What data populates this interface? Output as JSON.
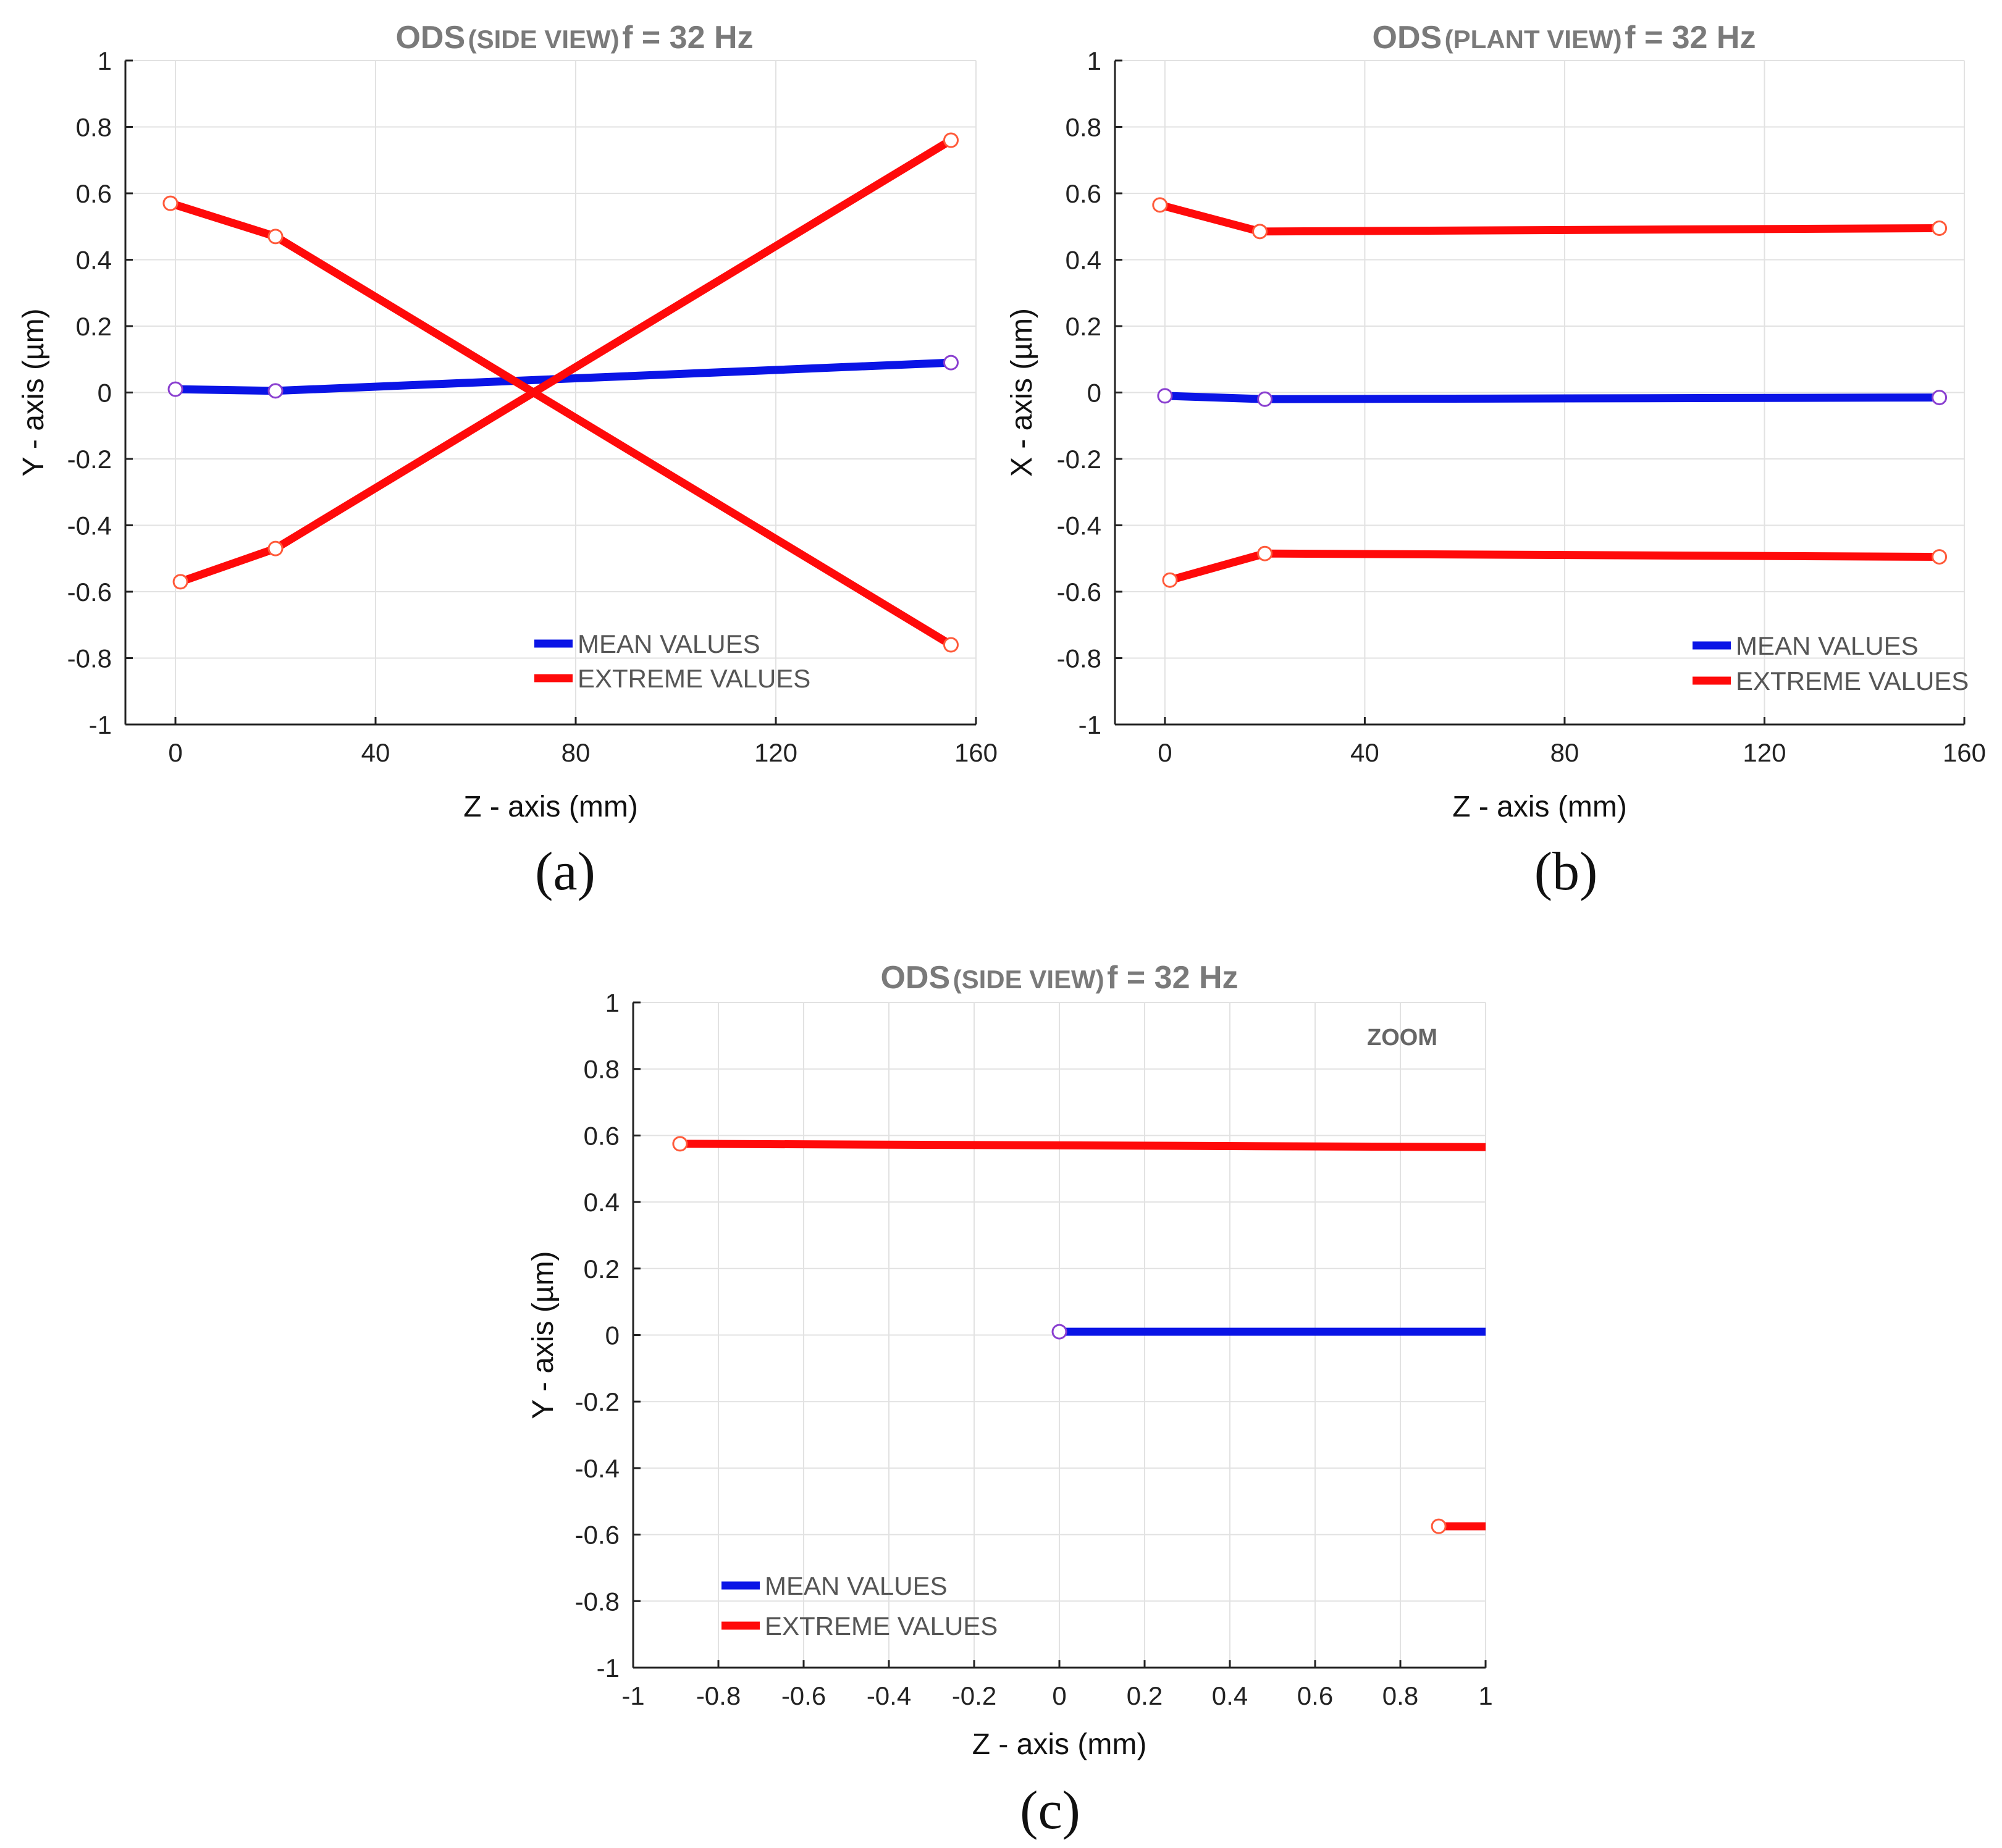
{
  "figure": {
    "captions": [
      "(a)",
      "(b)",
      "(c)"
    ]
  },
  "colors": {
    "mean": "#0a14e6",
    "extreme": "#ff0a0a",
    "mean_marker": "#8a3fd0",
    "extreme_marker": "#ff5a3a",
    "grid": "#e2e2e2",
    "axis": "#222222"
  },
  "chart_data": [
    {
      "type": "line",
      "title_prefix": "ODS",
      "title_view": "(SIDE VIEW)",
      "title_suffix": "f = 32 Hz",
      "xlabel": "Z - axis (mm)",
      "ylabel": "Y - axis (µm)",
      "xlim": [
        -10,
        160
      ],
      "ylim": [
        -1,
        1
      ],
      "xticks": [
        0,
        40,
        80,
        120,
        160
      ],
      "yticks": [
        -1,
        -0.8,
        -0.6,
        -0.4,
        -0.2,
        0,
        0.2,
        0.4,
        0.6,
        0.8,
        1
      ],
      "xtick_labels": [
        "0",
        "40",
        "80",
        "120",
        "160"
      ],
      "ytick_labels": [
        "-1",
        "-0.8",
        "-0.6",
        "-0.4",
        "-0.2",
        "0",
        "0.2",
        "0.4",
        "0.6",
        "0.8",
        "1"
      ],
      "legend": [
        "MEAN VALUES",
        "EXTREME VALUES"
      ],
      "legend_position": "bottom-right",
      "annotation": "",
      "series": [
        {
          "name": "MEAN VALUES",
          "kind": "mean",
          "x": [
            0,
            20,
            155
          ],
          "y": [
            0.01,
            0.005,
            0.09
          ],
          "markers": [
            true,
            true,
            true
          ]
        },
        {
          "name": "EXTREME VALUES",
          "kind": "extreme",
          "x": [
            -1,
            20,
            155
          ],
          "y": [
            0.57,
            0.47,
            -0.76
          ],
          "markers": [
            true,
            true,
            true
          ]
        },
        {
          "name": "EXTREME VALUES",
          "kind": "extreme",
          "x": [
            1,
            20,
            155
          ],
          "y": [
            -0.57,
            -0.47,
            0.76
          ],
          "markers": [
            true,
            true,
            true
          ]
        }
      ]
    },
    {
      "type": "line",
      "title_prefix": "ODS",
      "title_view": "(PLANT VIEW)",
      "title_suffix": "f = 32 Hz",
      "xlabel": "Z - axis (mm)",
      "ylabel": "X - axis (µm)",
      "xlim": [
        -10,
        160
      ],
      "ylim": [
        -1,
        1
      ],
      "xticks": [
        0,
        40,
        80,
        120,
        160
      ],
      "yticks": [
        -1,
        -0.8,
        -0.6,
        -0.4,
        -0.2,
        0,
        0.2,
        0.4,
        0.6,
        0.8,
        1
      ],
      "xtick_labels": [
        "0",
        "40",
        "80",
        "120",
        "160"
      ],
      "ytick_labels": [
        "-1",
        "-0.8",
        "-0.6",
        "-0.4",
        "-0.2",
        "0",
        "0.2",
        "0.4",
        "0.6",
        "0.8",
        "1"
      ],
      "legend": [
        "MEAN VALUES",
        "EXTREME VALUES"
      ],
      "legend_position": "bottom-right",
      "annotation": "",
      "series": [
        {
          "name": "MEAN VALUES",
          "kind": "mean",
          "x": [
            0,
            20,
            155
          ],
          "y": [
            -0.01,
            -0.02,
            -0.015
          ],
          "markers": [
            true,
            true,
            true
          ]
        },
        {
          "name": "EXTREME VALUES",
          "kind": "extreme",
          "x": [
            -1,
            19,
            155
          ],
          "y": [
            0.565,
            0.485,
            0.495
          ],
          "markers": [
            true,
            true,
            true
          ]
        },
        {
          "name": "EXTREME VALUES",
          "kind": "extreme",
          "x": [
            1,
            20,
            155
          ],
          "y": [
            -0.565,
            -0.485,
            -0.495
          ],
          "markers": [
            true,
            true,
            true
          ]
        }
      ]
    },
    {
      "type": "line",
      "title_prefix": "ODS",
      "title_view": "(SIDE VIEW)",
      "title_suffix": "f = 32 Hz",
      "xlabel": "Z - axis (mm)",
      "ylabel": "Y - axis (µm)",
      "xlim": [
        -1,
        1
      ],
      "ylim": [
        -1,
        1
      ],
      "xticks": [
        -1,
        -0.8,
        -0.6,
        -0.4,
        -0.2,
        0,
        0.2,
        0.4,
        0.6,
        0.8,
        1
      ],
      "yticks": [
        -1,
        -0.8,
        -0.6,
        -0.4,
        -0.2,
        0,
        0.2,
        0.4,
        0.6,
        0.8,
        1
      ],
      "xtick_labels": [
        "-1",
        "-0.8",
        "-0.6",
        "-0.4",
        "-0.2",
        "0",
        "0.2",
        "0.4",
        "0.6",
        "0.8",
        "1"
      ],
      "ytick_labels": [
        "-1",
        "-0.8",
        "-0.6",
        "-0.4",
        "-0.2",
        "0",
        "0.2",
        "0.4",
        "0.6",
        "0.8",
        "1"
      ],
      "legend": [
        "MEAN VALUES",
        "EXTREME VALUES"
      ],
      "legend_position": "bottom-left",
      "annotation": "ZOOM",
      "series": [
        {
          "name": "MEAN VALUES",
          "kind": "mean",
          "x": [
            0,
            1
          ],
          "y": [
            0.01,
            0.01
          ],
          "markers": [
            true,
            false
          ]
        },
        {
          "name": "EXTREME VALUES",
          "kind": "extreme",
          "x": [
            -0.89,
            1
          ],
          "y": [
            0.575,
            0.565
          ],
          "markers": [
            true,
            false
          ]
        },
        {
          "name": "EXTREME VALUES",
          "kind": "extreme",
          "x": [
            0.89,
            1
          ],
          "y": [
            -0.575,
            -0.575
          ],
          "markers": [
            true,
            false
          ]
        }
      ]
    }
  ]
}
